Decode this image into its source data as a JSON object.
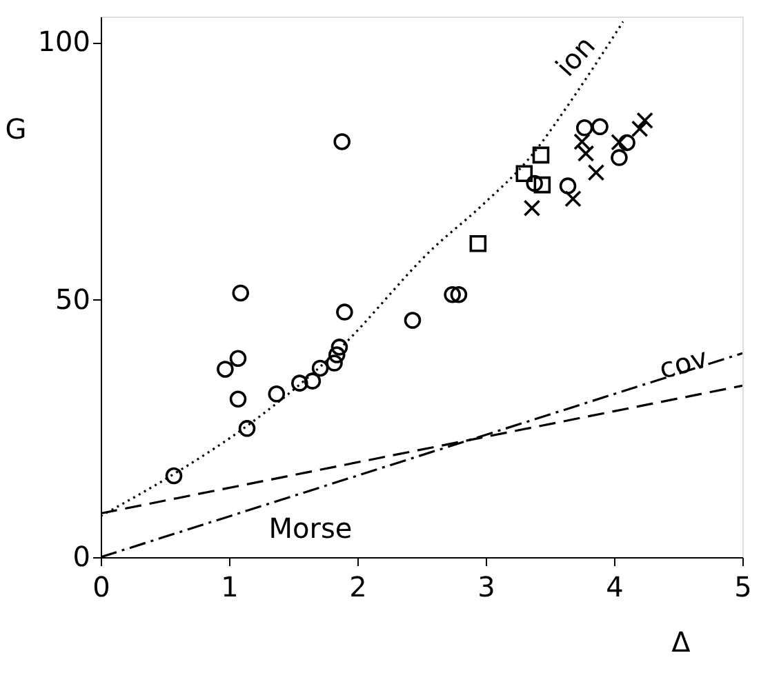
{
  "chart_data": {
    "type": "scatter",
    "xlabel": "Δ",
    "ylabel": "G",
    "xlim": [
      0,
      5
    ],
    "ylim": [
      0,
      105
    ],
    "xticks": [
      0,
      1,
      2,
      3,
      4,
      5
    ],
    "yticks": [
      0,
      50,
      100
    ],
    "grid": false,
    "series": [
      {
        "marker": "circle",
        "color": "#000000",
        "x": [
          0.57,
          2.43,
          2.74,
          2.79,
          1.09,
          1.07,
          0.97,
          1.07,
          1.14,
          1.37,
          1.55,
          1.65,
          1.71,
          1.82,
          1.84,
          1.86,
          1.9,
          1.88,
          3.89,
          3.38,
          3.77,
          3.64,
          4.04,
          4.1
        ],
        "values": [
          15.8,
          46,
          51,
          51,
          51.3,
          38.6,
          36.5,
          30.7,
          25,
          31.7,
          33.8,
          34.2,
          36.7,
          37.7,
          39.3,
          40.8,
          47.6,
          80.7,
          83.6,
          72.6,
          83.4,
          72.1,
          77.6,
          80.5
        ]
      },
      {
        "marker": "square",
        "color": "#000000",
        "x": [
          3.3,
          3.43,
          3.44,
          2.94
        ],
        "values": [
          74.5,
          78.1,
          72.3,
          60.9
        ]
      },
      {
        "marker": "cross",
        "color": "#000000",
        "x": [
          3.36,
          3.75,
          3.78,
          3.86
        ],
        "values": [
          67.8,
          80.7,
          78.4,
          74.7
        ]
      },
      {
        "marker": "cross",
        "color": "#000000",
        "x": [
          3.68,
          4.04,
          4.2,
          4.24
        ],
        "values": [
          69.6,
          80.6,
          83.2,
          84.8
        ]
      },
      {
        "type": "line",
        "line_style": "dotted",
        "color": "#000000",
        "x": [
          0,
          0.58,
          1.14,
          1.85,
          2.59,
          2.97,
          3.34,
          3.71,
          4.07
        ],
        "values": [
          8,
          16.3,
          25.5,
          40.2,
          60,
          68.3,
          77.5,
          90.3,
          104
        ]
      },
      {
        "type": "line",
        "line_style": "dashed",
        "color": "#000000",
        "x": [
          0,
          5
        ],
        "values": [
          8.5,
          33.3
        ]
      },
      {
        "type": "line",
        "line_style": "dashdot",
        "color": "#000000",
        "x": [
          0,
          5
        ],
        "values": [
          0,
          39.6
        ]
      }
    ],
    "annotations": [
      "ion",
      "cov",
      "Morse"
    ]
  }
}
